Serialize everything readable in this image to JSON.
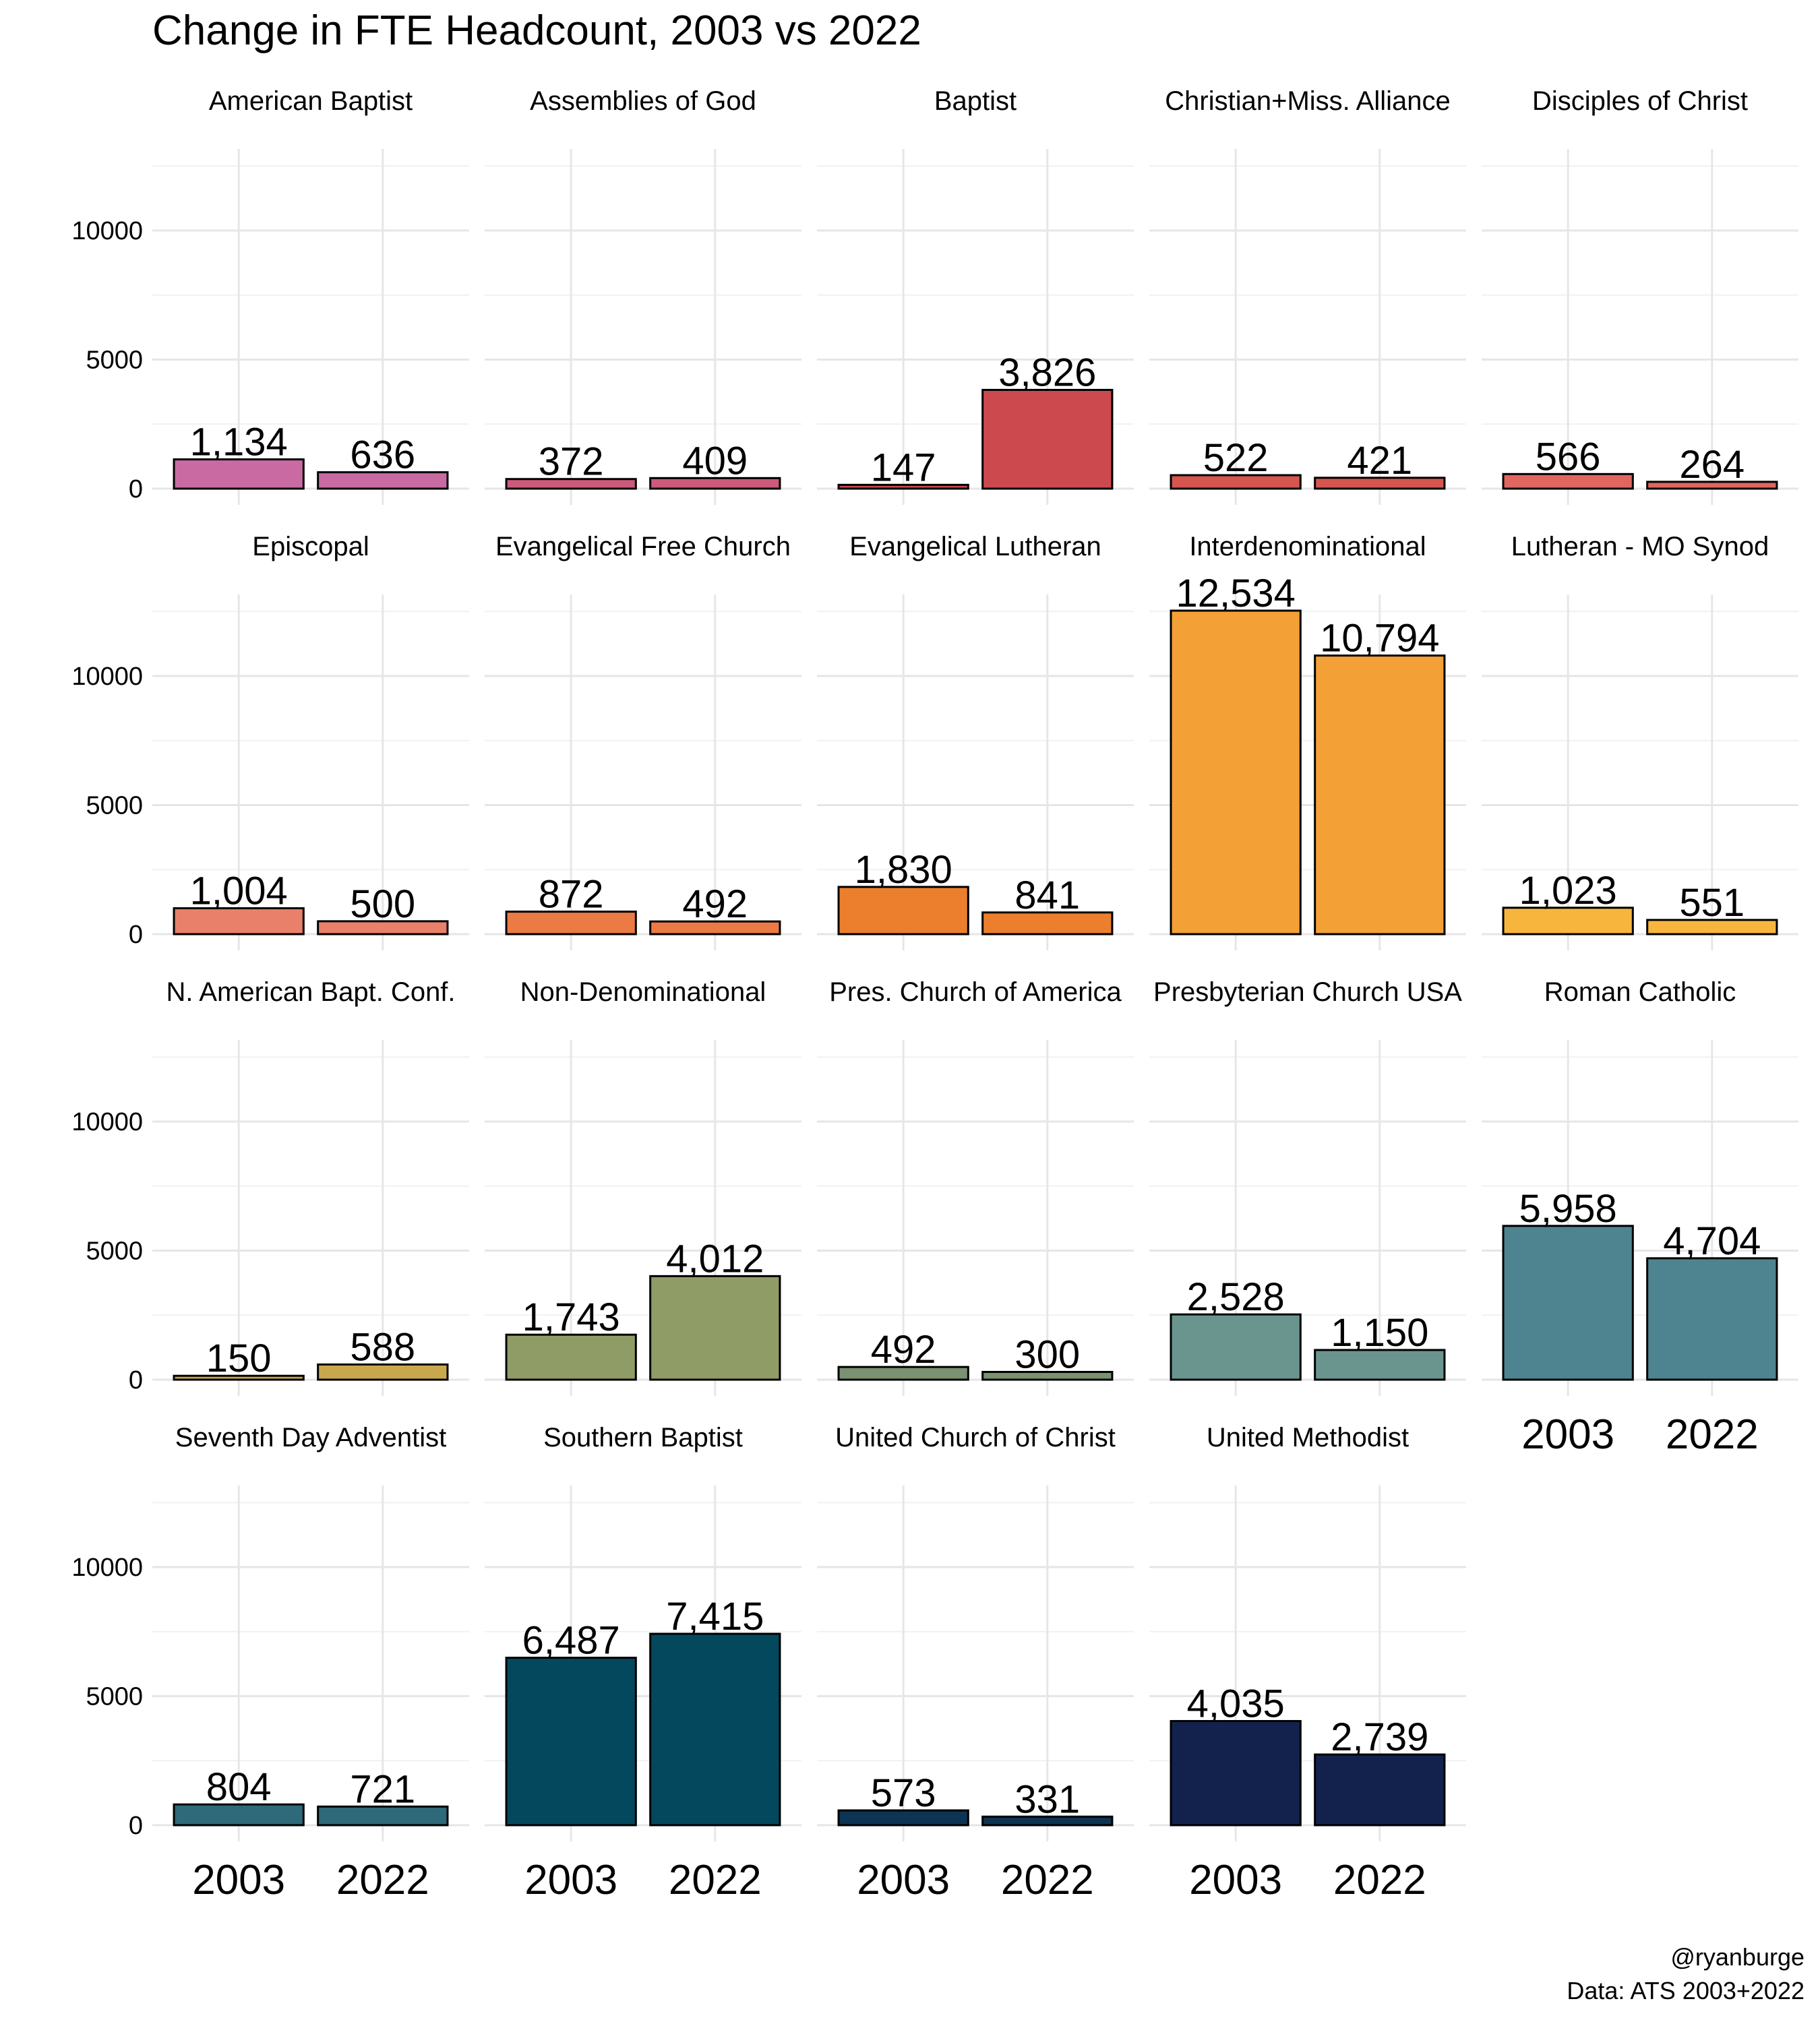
{
  "title": "Change in FTE Headcount, 2003 vs 2022",
  "caption": [
    "@ryanburge",
    "Data: ATS 2003+2022"
  ],
  "chart_data": [
    {
      "type": "bar",
      "title": "American Baptist",
      "categories": [
        "2003",
        "2022"
      ],
      "values": [
        1134,
        636
      ],
      "value_labels": [
        "1,134",
        "636"
      ],
      "color": "#c96aa3",
      "ylim": [
        -627,
        13161
      ],
      "yticks": [
        0,
        5000,
        10000
      ],
      "yminor": [
        2500,
        7500,
        12500
      ],
      "grid": true,
      "show_y_labels": true,
      "show_x_labels": false
    },
    {
      "type": "bar",
      "title": "Assemblies of God",
      "categories": [
        "2003",
        "2022"
      ],
      "values": [
        372,
        409
      ],
      "value_labels": [
        "372",
        "409"
      ],
      "color": "#cc5a7a",
      "ylim": [
        -627,
        13161
      ],
      "yticks": [
        0,
        5000,
        10000
      ],
      "yminor": [
        2500,
        7500,
        12500
      ],
      "grid": true,
      "show_y_labels": false,
      "show_x_labels": false
    },
    {
      "type": "bar",
      "title": "Baptist",
      "categories": [
        "2003",
        "2022"
      ],
      "values": [
        147,
        3826
      ],
      "value_labels": [
        "147",
        "3,826"
      ],
      "color": "#cc4a4e",
      "ylim": [
        -627,
        13161
      ],
      "yticks": [
        0,
        5000,
        10000
      ],
      "yminor": [
        2500,
        7500,
        12500
      ],
      "grid": true,
      "show_y_labels": false,
      "show_x_labels": false
    },
    {
      "type": "bar",
      "title": "Christian+Miss. Alliance",
      "categories": [
        "2003",
        "2022"
      ],
      "values": [
        522,
        421
      ],
      "value_labels": [
        "522",
        "421"
      ],
      "color": "#d4564f",
      "ylim": [
        -627,
        13161
      ],
      "yticks": [
        0,
        5000,
        10000
      ],
      "yminor": [
        2500,
        7500,
        12500
      ],
      "grid": true,
      "show_y_labels": false,
      "show_x_labels": false
    },
    {
      "type": "bar",
      "title": "Disciples of Christ",
      "categories": [
        "2003",
        "2022"
      ],
      "values": [
        566,
        264
      ],
      "value_labels": [
        "566",
        "264"
      ],
      "color": "#e0665f",
      "ylim": [
        -627,
        13161
      ],
      "yticks": [
        0,
        5000,
        10000
      ],
      "yminor": [
        2500,
        7500,
        12500
      ],
      "grid": true,
      "show_y_labels": false,
      "show_x_labels": false
    },
    {
      "type": "bar",
      "title": "Episcopal",
      "categories": [
        "2003",
        "2022"
      ],
      "values": [
        1004,
        500
      ],
      "value_labels": [
        "1,004",
        "500"
      ],
      "color": "#e8806a",
      "ylim": [
        -627,
        13161
      ],
      "yticks": [
        0,
        5000,
        10000
      ],
      "yminor": [
        2500,
        7500,
        12500
      ],
      "grid": true,
      "show_y_labels": true,
      "show_x_labels": false
    },
    {
      "type": "bar",
      "title": "Evangelical Free Church",
      "categories": [
        "2003",
        "2022"
      ],
      "values": [
        872,
        492
      ],
      "value_labels": [
        "872",
        "492"
      ],
      "color": "#ec7a45",
      "ylim": [
        -627,
        13161
      ],
      "yticks": [
        0,
        5000,
        10000
      ],
      "yminor": [
        2500,
        7500,
        12500
      ],
      "grid": true,
      "show_y_labels": false,
      "show_x_labels": false
    },
    {
      "type": "bar",
      "title": "Evangelical Lutheran",
      "categories": [
        "2003",
        "2022"
      ],
      "values": [
        1830,
        841
      ],
      "value_labels": [
        "1,830",
        "841"
      ],
      "color": "#eb7f2e",
      "ylim": [
        -627,
        13161
      ],
      "yticks": [
        0,
        5000,
        10000
      ],
      "yminor": [
        2500,
        7500,
        12500
      ],
      "grid": true,
      "show_y_labels": false,
      "show_x_labels": false
    },
    {
      "type": "bar",
      "title": "Interdenominational",
      "categories": [
        "2003",
        "2022"
      ],
      "values": [
        12534,
        10794
      ],
      "value_labels": [
        "12,534",
        "10,794"
      ],
      "color": "#f3a037",
      "ylim": [
        -627,
        13161
      ],
      "yticks": [
        0,
        5000,
        10000
      ],
      "yminor": [
        2500,
        7500,
        12500
      ],
      "grid": true,
      "show_y_labels": false,
      "show_x_labels": false
    },
    {
      "type": "bar",
      "title": "Lutheran - MO Synod",
      "categories": [
        "2003",
        "2022"
      ],
      "values": [
        1023,
        551
      ],
      "value_labels": [
        "1,023",
        "551"
      ],
      "color": "#f8b53e",
      "ylim": [
        -627,
        13161
      ],
      "yticks": [
        0,
        5000,
        10000
      ],
      "yminor": [
        2500,
        7500,
        12500
      ],
      "grid": true,
      "show_y_labels": false,
      "show_x_labels": false
    },
    {
      "type": "bar",
      "title": "N. American Bapt. Conf.",
      "categories": [
        "2003",
        "2022"
      ],
      "values": [
        150,
        588
      ],
      "value_labels": [
        "150",
        "588"
      ],
      "color": "#c9a84d",
      "ylim": [
        -627,
        13161
      ],
      "yticks": [
        0,
        5000,
        10000
      ],
      "yminor": [
        2500,
        7500,
        12500
      ],
      "grid": true,
      "show_y_labels": true,
      "show_x_labels": false
    },
    {
      "type": "bar",
      "title": "Non-Denominational",
      "categories": [
        "2003",
        "2022"
      ],
      "values": [
        1743,
        4012
      ],
      "value_labels": [
        "1,743",
        "4,012"
      ],
      "color": "#8f9c66",
      "ylim": [
        -627,
        13161
      ],
      "yticks": [
        0,
        5000,
        10000
      ],
      "yminor": [
        2500,
        7500,
        12500
      ],
      "grid": true,
      "show_y_labels": false,
      "show_x_labels": false
    },
    {
      "type": "bar",
      "title": "Pres. Church of America",
      "categories": [
        "2003",
        "2022"
      ],
      "values": [
        492,
        300
      ],
      "value_labels": [
        "492",
        "300"
      ],
      "color": "#7a9172",
      "ylim": [
        -627,
        13161
      ],
      "yticks": [
        0,
        5000,
        10000
      ],
      "yminor": [
        2500,
        7500,
        12500
      ],
      "grid": true,
      "show_y_labels": false,
      "show_x_labels": false
    },
    {
      "type": "bar",
      "title": "Presbyterian Church USA",
      "categories": [
        "2003",
        "2022"
      ],
      "values": [
        2528,
        1150
      ],
      "value_labels": [
        "2,528",
        "1,150"
      ],
      "color": "#6a958e",
      "ylim": [
        -627,
        13161
      ],
      "yticks": [
        0,
        5000,
        10000
      ],
      "yminor": [
        2500,
        7500,
        12500
      ],
      "grid": true,
      "show_y_labels": false,
      "show_x_labels": false
    },
    {
      "type": "bar",
      "title": "Roman Catholic",
      "categories": [
        "2003",
        "2022"
      ],
      "values": [
        5958,
        4704
      ],
      "value_labels": [
        "5,958",
        "4,704"
      ],
      "color": "#4e8490",
      "ylim": [
        -627,
        13161
      ],
      "yticks": [
        0,
        5000,
        10000
      ],
      "yminor": [
        2500,
        7500,
        12500
      ],
      "grid": true,
      "show_y_labels": false,
      "show_x_labels": true
    },
    {
      "type": "bar",
      "title": "Seventh Day Adventist",
      "categories": [
        "2003",
        "2022"
      ],
      "values": [
        804,
        721
      ],
      "value_labels": [
        "804",
        "721"
      ],
      "color": "#2e6a79",
      "ylim": [
        -627,
        13161
      ],
      "yticks": [
        0,
        5000,
        10000
      ],
      "yminor": [
        2500,
        7500,
        12500
      ],
      "grid": true,
      "show_y_labels": true,
      "show_x_labels": true
    },
    {
      "type": "bar",
      "title": "Southern Baptist",
      "categories": [
        "2003",
        "2022"
      ],
      "values": [
        6487,
        7415
      ],
      "value_labels": [
        "6,487",
        "7,415"
      ],
      "color": "#04485e",
      "ylim": [
        -627,
        13161
      ],
      "yticks": [
        0,
        5000,
        10000
      ],
      "yminor": [
        2500,
        7500,
        12500
      ],
      "grid": true,
      "show_y_labels": false,
      "show_x_labels": true
    },
    {
      "type": "bar",
      "title": "United Church of Christ",
      "categories": [
        "2003",
        "2022"
      ],
      "values": [
        573,
        331
      ],
      "value_labels": [
        "573",
        "331"
      ],
      "color": "#0d3453",
      "ylim": [
        -627,
        13161
      ],
      "yticks": [
        0,
        5000,
        10000
      ],
      "yminor": [
        2500,
        7500,
        12500
      ],
      "grid": true,
      "show_y_labels": false,
      "show_x_labels": true
    },
    {
      "type": "bar",
      "title": "United Methodist",
      "categories": [
        "2003",
        "2022"
      ],
      "values": [
        4035,
        2739
      ],
      "value_labels": [
        "4,035",
        "2,739"
      ],
      "color": "#13224c",
      "ylim": [
        -627,
        13161
      ],
      "yticks": [
        0,
        5000,
        10000
      ],
      "yminor": [
        2500,
        7500,
        12500
      ],
      "grid": true,
      "show_y_labels": false,
      "show_x_labels": true
    }
  ]
}
